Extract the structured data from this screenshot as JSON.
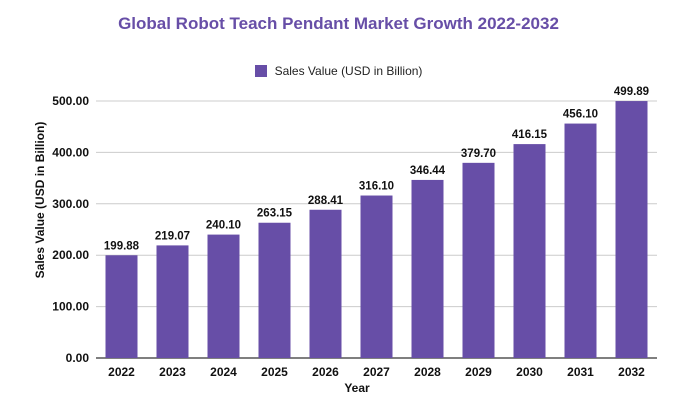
{
  "chart_data": {
    "type": "bar",
    "title": "Global Robot Teach Pendant Market Growth 2022-2032",
    "xlabel": "Year",
    "ylabel": "Sales Value (USD in Billion)",
    "categories": [
      "2022",
      "2023",
      "2024",
      "2025",
      "2026",
      "2027",
      "2028",
      "2029",
      "2030",
      "2031",
      "2032"
    ],
    "series": [
      {
        "name": "Sales Value (USD in Billion)",
        "values": [
          199.88,
          219.07,
          240.1,
          263.15,
          288.41,
          316.1,
          346.44,
          379.7,
          416.15,
          456.1,
          499.89
        ],
        "labels": [
          "199.88",
          "219.07",
          "240.10",
          "263.15",
          "288.41",
          "316.10",
          "346.44",
          "379.70",
          "416.15",
          "456.10",
          "499.89"
        ]
      }
    ],
    "ylim": [
      0,
      500
    ],
    "yticks": [
      "0.00",
      "100.00",
      "200.00",
      "300.00",
      "400.00",
      "500.00"
    ],
    "grid": true,
    "legend_position": "top",
    "colors": {
      "bar": "#674ea7",
      "title": "#674ea7",
      "first_label": "#0b3c49"
    }
  }
}
